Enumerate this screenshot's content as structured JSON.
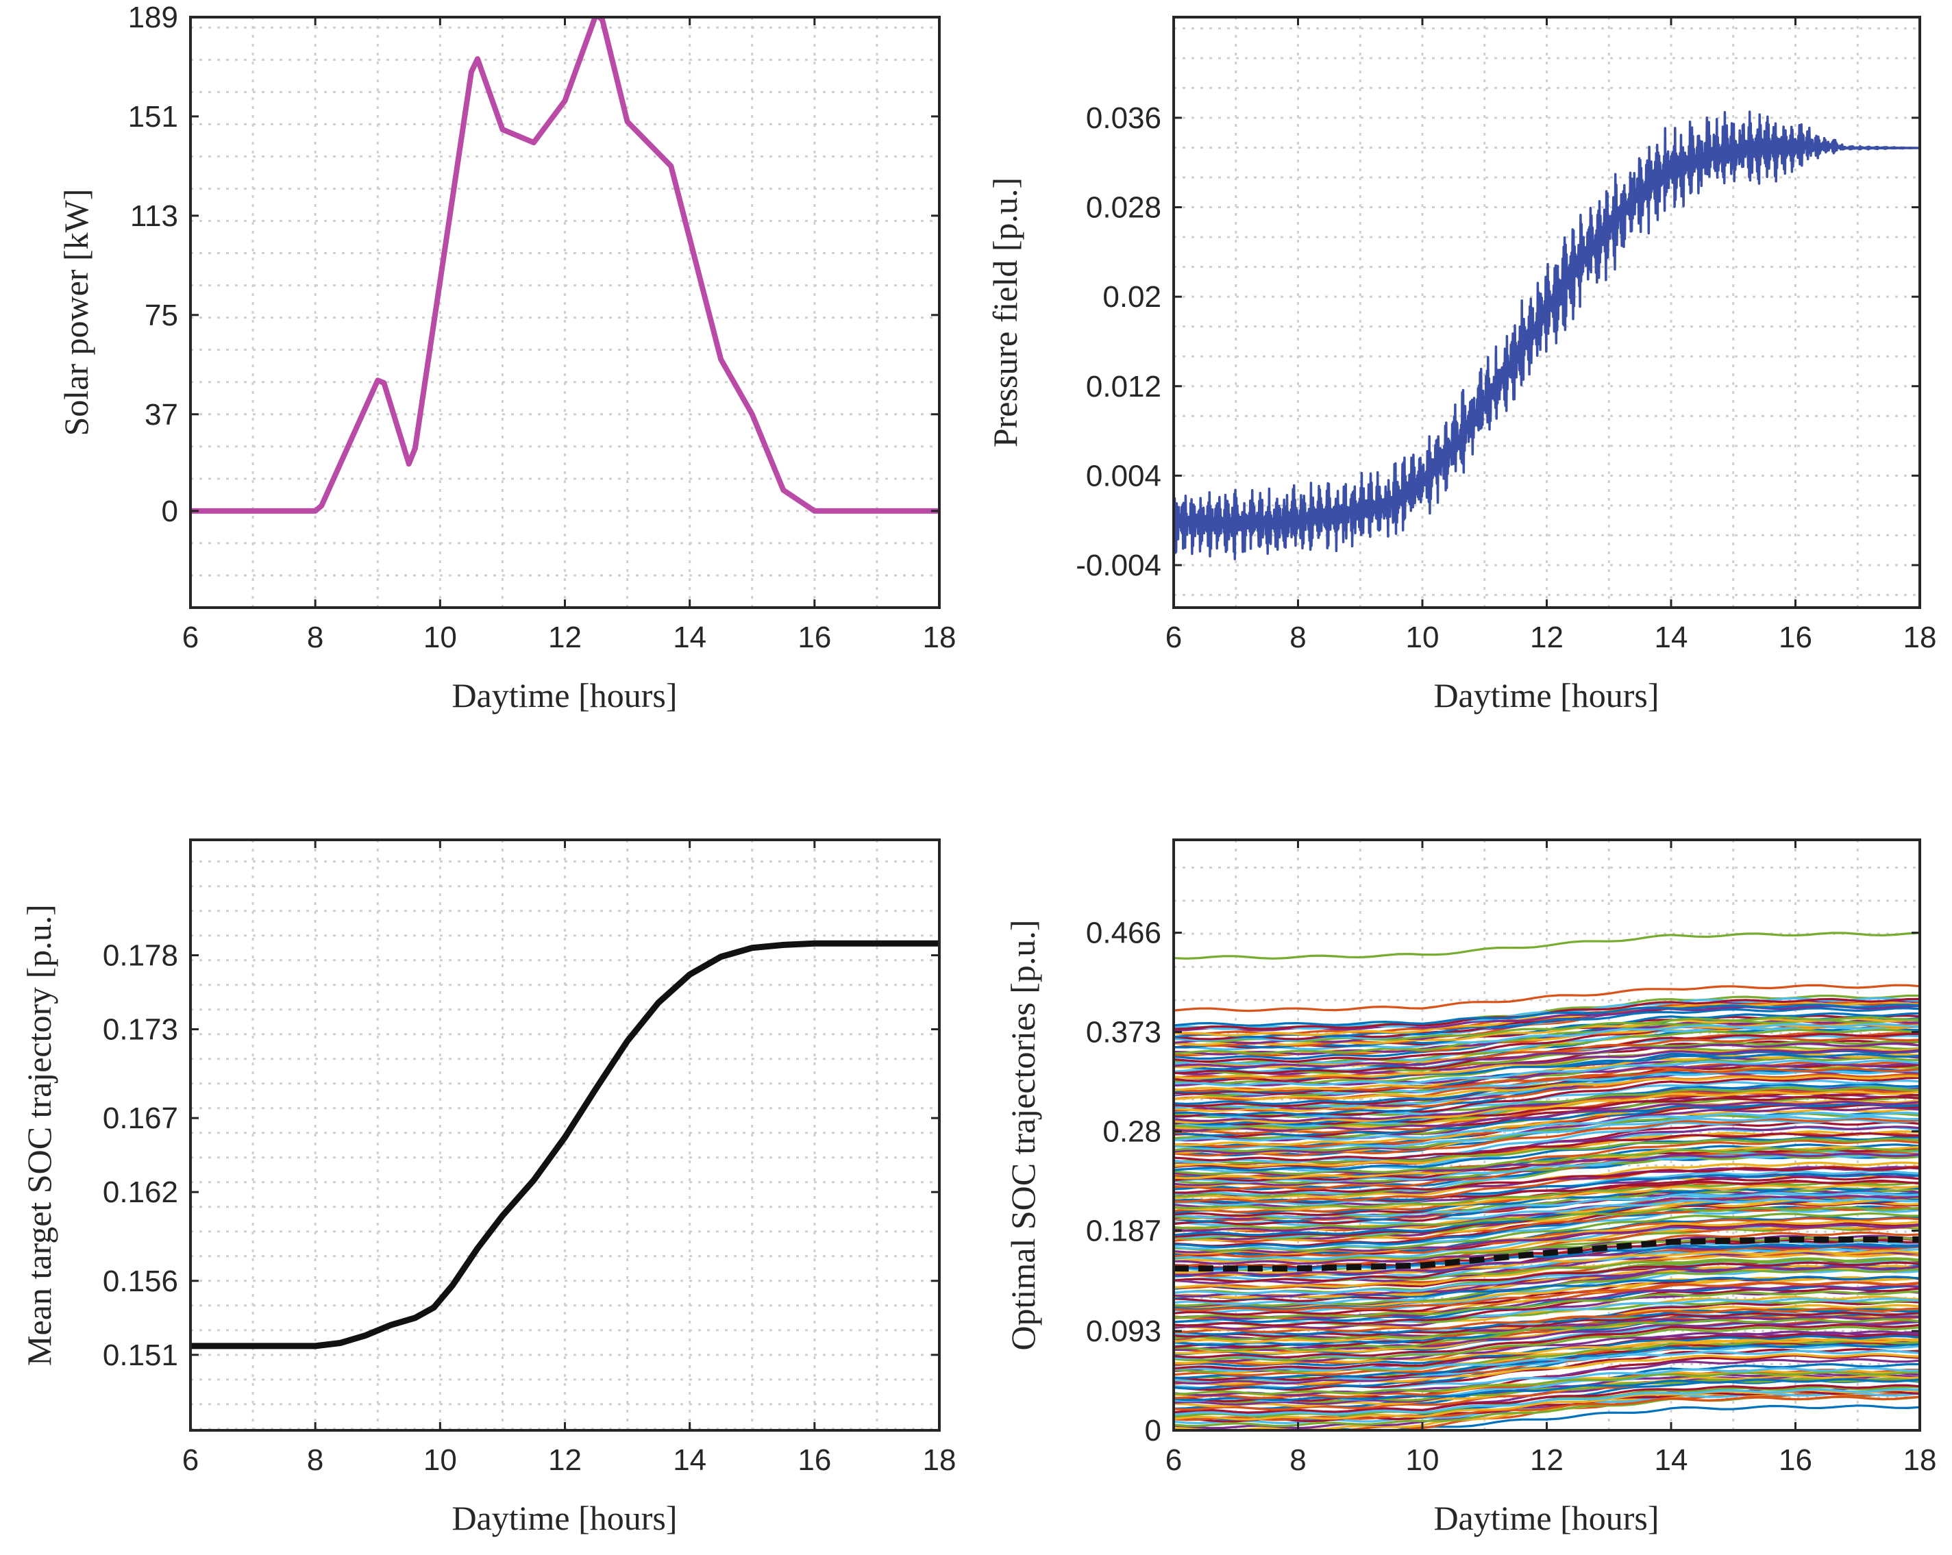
{
  "chart_data": [
    {
      "type": "line",
      "xlabel": "Daytime [hours]",
      "ylabel": "Solar power [kW]",
      "xlim": [
        6,
        18
      ],
      "ylim": [
        -37,
        189
      ],
      "xticks": [
        6,
        8,
        10,
        12,
        14,
        16,
        18
      ],
      "xtick_labels": [
        "6",
        "8",
        "10",
        "12",
        "14",
        "16",
        "18"
      ],
      "yticks": [
        0,
        37,
        75,
        113,
        151,
        189
      ],
      "ytick_labels": [
        "0",
        "37",
        "75",
        "113",
        "151",
        "189"
      ],
      "grid": true,
      "colors": {
        "line": "#b94ba6"
      },
      "series": [
        {
          "x": [
            6,
            8,
            8.1,
            9,
            9.1,
            9.5,
            9.6,
            10.5,
            10.6,
            11,
            11.5,
            12,
            12.5,
            12.6,
            13,
            13.7,
            14.5,
            15,
            15.5,
            16,
            18
          ],
          "y": [
            0,
            0,
            2,
            50,
            49,
            18,
            24,
            168,
            173,
            146,
            141,
            157,
            190,
            188,
            149,
            132,
            58,
            37,
            8,
            0,
            0
          ]
        }
      ]
    },
    {
      "type": "line",
      "xlabel": "Daytime [hours]",
      "ylabel": "Pressure field [p.u.]",
      "xlim": [
        6,
        18
      ],
      "ylim": [
        -0.0078,
        0.045
      ],
      "xticks": [
        6,
        8,
        10,
        12,
        14,
        16,
        18
      ],
      "xtick_labels": [
        "6",
        "8",
        "10",
        "12",
        "14",
        "16",
        "18"
      ],
      "yticks": [
        -0.004,
        0.004,
        0.012,
        0.02,
        0.028,
        0.036
      ],
      "ytick_labels": [
        "-0.004",
        "0.004",
        "0.012",
        "0.02",
        "0.028",
        "0.036"
      ],
      "grid": true,
      "colors": {
        "line": "#3a4fa5"
      },
      "series": [
        {
          "x": [
            6,
            7,
            8,
            9,
            9.5,
            10,
            10.5,
            11,
            11.5,
            12,
            12.5,
            13,
            13.5,
            14,
            14.5,
            15,
            15.5,
            16,
            16.5,
            16.8,
            18
          ],
          "y": [
            0.0,
            -0.0003,
            0.0,
            0.0008,
            0.0015,
            0.0035,
            0.0066,
            0.0105,
            0.0145,
            0.0188,
            0.0228,
            0.0262,
            0.0294,
            0.0314,
            0.0325,
            0.0331,
            0.0333,
            0.0334,
            0.0335,
            0.0333,
            0.0333
          ],
          "spread": [
            0.0032,
            0.0032,
            0.0032,
            0.0034,
            0.0036,
            0.0038,
            0.004,
            0.0042,
            0.0044,
            0.0046,
            0.0046,
            0.0046,
            0.0044,
            0.0042,
            0.004,
            0.0038,
            0.0034,
            0.0028,
            0.001,
            0.0002,
            0.0
          ]
        }
      ]
    },
    {
      "type": "line",
      "xlabel": "Daytime [hours]",
      "ylabel": "Mean target SOC trajectory [p.u.]",
      "xlim": [
        6,
        18
      ],
      "ylim": [
        0.1459,
        0.1858
      ],
      "xticks": [
        6,
        8,
        10,
        12,
        14,
        16,
        18
      ],
      "xtick_labels": [
        "6",
        "8",
        "10",
        "12",
        "14",
        "16",
        "18"
      ],
      "yticks": [
        0.151,
        0.156,
        0.162,
        0.167,
        0.173,
        0.178
      ],
      "ytick_labels": [
        "0.151",
        "0.156",
        "0.162",
        "0.167",
        "0.173",
        "0.178"
      ],
      "grid": true,
      "colors": {
        "line": "#111111"
      },
      "series": [
        {
          "x": [
            6,
            8,
            8.4,
            8.8,
            9.2,
            9.6,
            9.9,
            10.2,
            10.6,
            11,
            11.5,
            12,
            12.5,
            13,
            13.5,
            14,
            14.5,
            15,
            15.5,
            16,
            18
          ],
          "y": [
            0.1516,
            0.1516,
            0.1518,
            0.1523,
            0.153,
            0.1535,
            0.1542,
            0.1557,
            0.1582,
            0.1604,
            0.1628,
            0.1657,
            0.169,
            0.1722,
            0.1748,
            0.1767,
            0.1779,
            0.1785,
            0.1787,
            0.1788,
            0.1788
          ]
        }
      ]
    },
    {
      "type": "line",
      "xlabel": "Daytime [hours]",
      "ylabel": "Optimal SOC trajectories [p.u.]",
      "xlim": [
        6,
        18
      ],
      "ylim": [
        0,
        0.553
      ],
      "xticks": [
        6,
        8,
        10,
        12,
        14,
        16,
        18
      ],
      "xtick_labels": [
        "6",
        "8",
        "10",
        "12",
        "14",
        "16",
        "18"
      ],
      "yticks": [
        0,
        0.093,
        0.187,
        0.28,
        0.373,
        0.466
      ],
      "ytick_labels": [
        "0",
        "0.093",
        "0.187",
        "0.28",
        "0.373",
        "0.466"
      ],
      "grid": true,
      "colors": {
        "palette": [
          "#0072bd",
          "#d95319",
          "#edb120",
          "#7e2f8e",
          "#77ac30",
          "#4dbeee",
          "#a2142f"
        ],
        "mean_line": "#111111"
      },
      "trajectory_count": 260,
      "initial_soc_range": [
        0.0,
        0.44
      ],
      "top_trajectories_initial": [
        0.443,
        0.394
      ],
      "mean_trajectory": {
        "x": [
          6,
          8,
          10,
          12,
          14,
          16,
          18
        ],
        "y": [
          0.1516,
          0.1516,
          0.1545,
          0.166,
          0.1765,
          0.1787,
          0.1788
        ]
      }
    }
  ]
}
